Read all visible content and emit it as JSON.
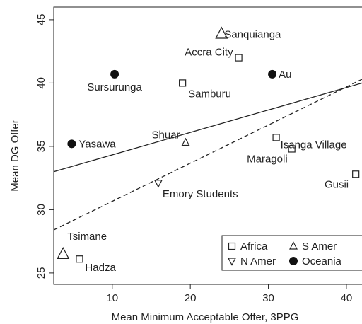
{
  "chart_data": {
    "type": "scatter",
    "title": "",
    "xlabel": "Mean Minimum Acceptable Offer, 3PPG",
    "ylabel": "Mean DG Offer",
    "xlim": [
      2.5,
      42
    ],
    "ylim": [
      24.1,
      46
    ],
    "xticks": [
      10,
      20,
      30,
      40
    ],
    "yticks": [
      25,
      30,
      35,
      40,
      45
    ],
    "grid": false,
    "legend": {
      "placement": "bottom-right",
      "entries": [
        {
          "label": "Africa",
          "marker": "square"
        },
        {
          "label": "S Amer",
          "marker": "triangle-up"
        },
        {
          "label": "N Amer",
          "marker": "triangle-down"
        },
        {
          "label": "Oceania",
          "marker": "filled-circle"
        }
      ]
    },
    "points": [
      {
        "label": "Sanquianga",
        "x": 24.0,
        "y": 43.9,
        "group": "S Amer",
        "marker": "triangle-up",
        "size": "large"
      },
      {
        "label": "Accra City",
        "x": 26.2,
        "y": 42.0,
        "group": "Africa",
        "marker": "square"
      },
      {
        "label": "Sursurunga",
        "x": 10.3,
        "y": 40.7,
        "group": "Oceania",
        "marker": "filled-circle"
      },
      {
        "label": "Au",
        "x": 30.5,
        "y": 40.7,
        "group": "Oceania",
        "marker": "filled-circle"
      },
      {
        "label": "Samburu",
        "x": 19.0,
        "y": 40.0,
        "group": "Africa",
        "marker": "square"
      },
      {
        "label": "Isanga Village",
        "x": 31.0,
        "y": 35.7,
        "group": "Africa",
        "marker": "square"
      },
      {
        "label": "Shuar",
        "x": 19.4,
        "y": 35.3,
        "group": "S Amer",
        "marker": "triangle-up"
      },
      {
        "label": "Yasawa",
        "x": 4.8,
        "y": 35.2,
        "group": "Oceania",
        "marker": "filled-circle"
      },
      {
        "label": "Maragoli",
        "x": 33.0,
        "y": 34.8,
        "group": "Africa",
        "marker": "square"
      },
      {
        "label": "Gusii",
        "x": 41.2,
        "y": 32.8,
        "group": "Africa",
        "marker": "square"
      },
      {
        "label": "Emory Students",
        "x": 15.9,
        "y": 32.1,
        "group": "N Amer",
        "marker": "triangle-down"
      },
      {
        "label": "Tsimane",
        "x": 3.7,
        "y": 26.5,
        "group": "S Amer",
        "marker": "triangle-up",
        "size": "large"
      },
      {
        "label": "Hadza",
        "x": 5.8,
        "y": 26.1,
        "group": "Africa",
        "marker": "square"
      }
    ],
    "lines": [
      {
        "style": "solid",
        "x": [
          2.5,
          42
        ],
        "y": [
          33.0,
          40.0
        ]
      },
      {
        "style": "dashed",
        "x": [
          2.5,
          42
        ],
        "y": [
          28.4,
          40.3
        ]
      }
    ]
  }
}
